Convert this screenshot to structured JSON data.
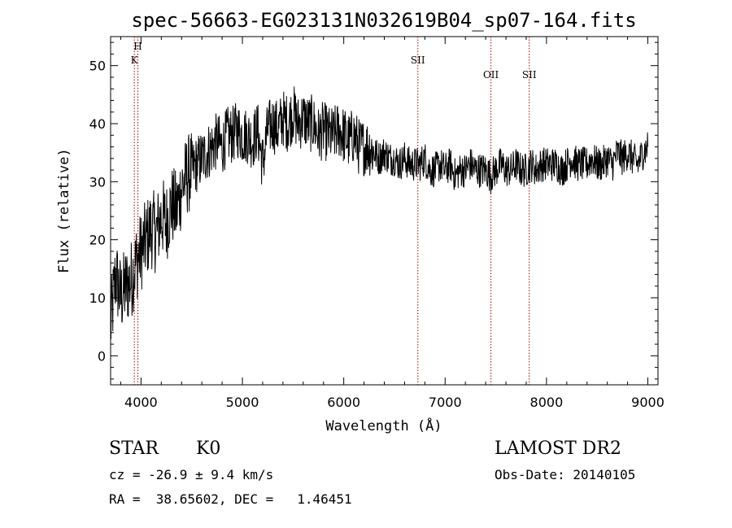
{
  "chart_data": {
    "type": "line",
    "title": "spec-56663-EG023131N032619B04_sp07-164.fits",
    "xlabel": "Wavelength (Å)",
    "ylabel": "Flux (relative)",
    "xlim": [
      3700,
      9100
    ],
    "ylim": [
      -5,
      55
    ],
    "xticks": [
      4000,
      5000,
      6000,
      7000,
      8000,
      9000
    ],
    "yticks": [
      0,
      10,
      20,
      30,
      40,
      50
    ],
    "grid": false,
    "series": [
      {
        "x": [
          3700,
          3750,
          3800,
          3850,
          3900,
          3950,
          4000,
          4050,
          4100,
          4150,
          4200,
          4250,
          4300,
          4350,
          4400,
          4450,
          4500,
          4550,
          4600,
          4650,
          4700,
          4750,
          4800,
          4850,
          4900,
          4950,
          5000,
          5050,
          5100,
          5150,
          5200,
          5250,
          5300,
          5350,
          5400,
          5450,
          5500,
          5550,
          5600,
          5650,
          5700,
          5750,
          5800,
          5850,
          5900,
          5950,
          6000,
          6050,
          6100,
          6150,
          6200,
          6250,
          6300,
          6350,
          6400,
          6450,
          6500,
          6550,
          6600,
          6650,
          6700,
          6750,
          6800,
          6850,
          6900,
          6950,
          7000,
          7050,
          7100,
          7150,
          7200,
          7250,
          7300,
          7350,
          7400,
          7450,
          7500,
          7550,
          7600,
          7650,
          7700,
          7750,
          7800,
          7850,
          7900,
          7950,
          8000,
          8050,
          8100,
          8150,
          8200,
          8250,
          8300,
          8350,
          8400,
          8450,
          8500,
          8550,
          8600,
          8650,
          8700,
          8750,
          8800,
          8850,
          8900,
          8950,
          9000
        ],
        "values": [
          5,
          14,
          10,
          12,
          13,
          16,
          18,
          20,
          22,
          21,
          24,
          23,
          26,
          25,
          29,
          31,
          32,
          33,
          34,
          35,
          36,
          37,
          36,
          38,
          38,
          39,
          38,
          38,
          37,
          39,
          33,
          39,
          40,
          39,
          41,
          40,
          42,
          40,
          41,
          40,
          40,
          38,
          39,
          38,
          38,
          39,
          38,
          37,
          38,
          36,
          36,
          36,
          35,
          34,
          35,
          34,
          34,
          33,
          34,
          33,
          33,
          33,
          34,
          32,
          32,
          33,
          32,
          33,
          31,
          32,
          32,
          33,
          32,
          32,
          32,
          31,
          32,
          33,
          32,
          32,
          33,
          32,
          32,
          33,
          32,
          33,
          33,
          33,
          33,
          32,
          33,
          34,
          33,
          33,
          33,
          34,
          33,
          33,
          34,
          33,
          35,
          34,
          35,
          34,
          33,
          35,
          36
        ]
      }
    ],
    "lines": [
      {
        "x": 3934,
        "labels": [
          "K"
        ]
      },
      {
        "x": 3969,
        "labels": [
          "H"
        ]
      },
      {
        "x": 6731,
        "labels": [
          "SII"
        ]
      },
      {
        "x": 7452,
        "labels": [
          "OII"
        ]
      },
      {
        "x": 7830,
        "labels": [
          "SII"
        ]
      }
    ],
    "colors": {
      "spectrum": "#000000",
      "line_marker": "#aa0000"
    }
  },
  "info": {
    "class": "STAR",
    "subclass": "K0",
    "survey": "LAMOST DR2",
    "cz": "cz = -26.9 ± 9.4 km/s",
    "obs_date": "Obs-Date: 20140105",
    "coords": "RA =  38.65602, DEC =   1.46451"
  }
}
